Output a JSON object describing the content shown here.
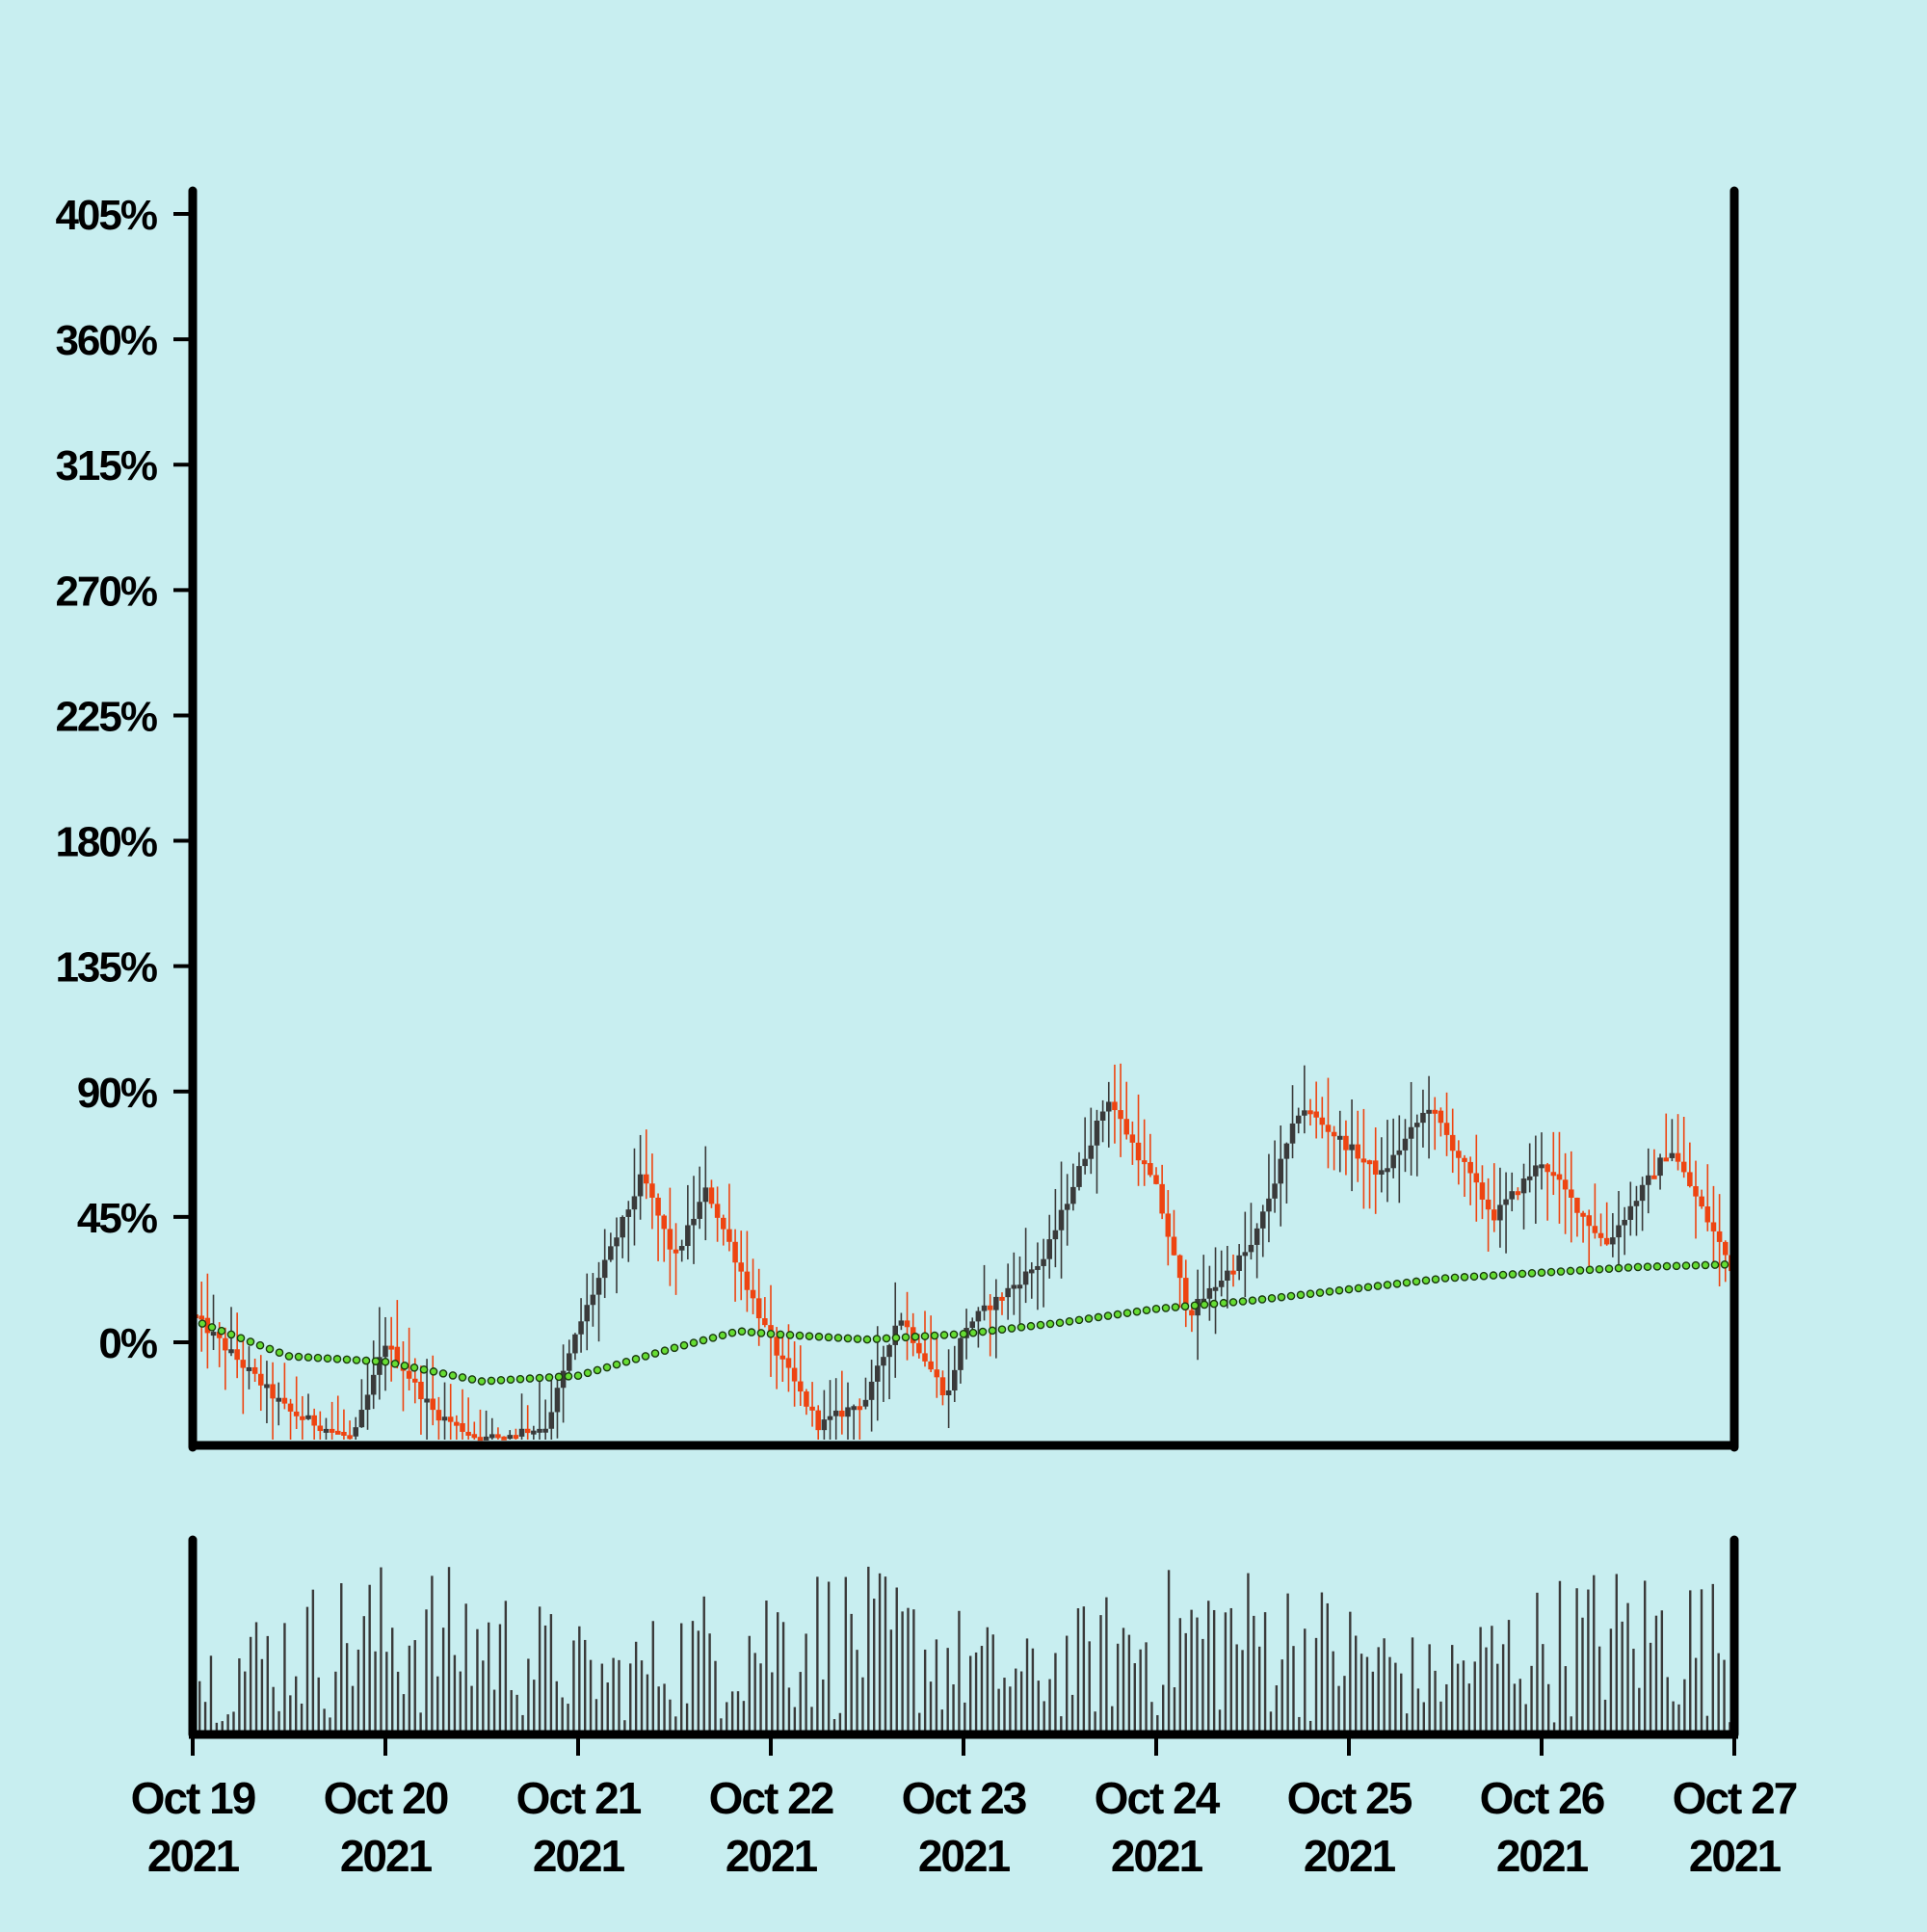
{
  "colors": {
    "background": "#c8eef0",
    "up_candle": "#3a3a3a",
    "down_candle": "#ee4411",
    "moving_average": "#66dd33",
    "volume": "#3a3a3a",
    "axis": "#000000"
  },
  "chart_data": [
    {
      "type": "candlestick",
      "title": "",
      "xlabel": "",
      "ylabel": "",
      "grid": false,
      "x_range": [
        "2021-10-19",
        "2021-10-27"
      ],
      "ylim": [
        -35,
        405
      ],
      "y_ticks": [
        {
          "value": 0,
          "label": "0%"
        },
        {
          "value": 45,
          "label": "45%"
        },
        {
          "value": 90,
          "label": "90%"
        },
        {
          "value": 135,
          "label": "135%"
        },
        {
          "value": 180,
          "label": "180%"
        },
        {
          "value": 225,
          "label": "225%"
        },
        {
          "value": 270,
          "label": "270%"
        },
        {
          "value": 315,
          "label": "315%"
        },
        {
          "value": 360,
          "label": "360%"
        },
        {
          "value": 405,
          "label": "405%"
        }
      ],
      "x_ticks": [
        {
          "date": "2021-10-19",
          "line1": "Oct 19",
          "line2": "2021"
        },
        {
          "date": "2021-10-20",
          "line1": "Oct 20",
          "line2": "2021"
        },
        {
          "date": "2021-10-21",
          "line1": "Oct 21",
          "line2": "2021"
        },
        {
          "date": "2021-10-22",
          "line1": "Oct 22",
          "line2": "2021"
        },
        {
          "date": "2021-10-23",
          "line1": "Oct 23",
          "line2": "2021"
        },
        {
          "date": "2021-10-24",
          "line1": "Oct 24",
          "line2": "2021"
        },
        {
          "date": "2021-10-25",
          "line1": "Oct 25",
          "line2": "2021"
        },
        {
          "date": "2021-10-26",
          "line1": "Oct 26",
          "line2": "2021"
        },
        {
          "date": "2021-10-27",
          "line1": "Oct 27",
          "line2": "2021"
        }
      ],
      "close_path": [
        {
          "date": "2021-10-19",
          "close": 10
        },
        {
          "date": "2021-10-19 12:00",
          "close": -25
        },
        {
          "date": "2021-10-19 20:00",
          "close": -35
        },
        {
          "date": "2021-10-20",
          "close": 0
        },
        {
          "date": "2021-10-20 06:00",
          "close": -25
        },
        {
          "date": "2021-10-20 12:00",
          "close": -35
        },
        {
          "date": "2021-10-20 20:00",
          "close": -30
        },
        {
          "date": "2021-10-21",
          "close": 5
        },
        {
          "date": "2021-10-21 08:00",
          "close": 60
        },
        {
          "date": "2021-10-21 12:00",
          "close": 30
        },
        {
          "date": "2021-10-21 16:00",
          "close": 55
        },
        {
          "date": "2021-10-22",
          "close": 0
        },
        {
          "date": "2021-10-22 06:00",
          "close": -30
        },
        {
          "date": "2021-10-22 12:00",
          "close": -20
        },
        {
          "date": "2021-10-22 16:00",
          "close": 10
        },
        {
          "date": "2021-10-22 22:00",
          "close": -20
        },
        {
          "date": "2021-10-23",
          "close": 5
        },
        {
          "date": "2021-10-23 10:00",
          "close": 30
        },
        {
          "date": "2021-10-23 18:00",
          "close": 88
        },
        {
          "date": "2021-10-24",
          "close": 55
        },
        {
          "date": "2021-10-24 04:00",
          "close": 10
        },
        {
          "date": "2021-10-24 12:00",
          "close": 35
        },
        {
          "date": "2021-10-24 18:00",
          "close": 85
        },
        {
          "date": "2021-10-25 04:00",
          "close": 60
        },
        {
          "date": "2021-10-25 10:00",
          "close": 85
        },
        {
          "date": "2021-10-25 18:00",
          "close": 45
        },
        {
          "date": "2021-10-26",
          "close": 65
        },
        {
          "date": "2021-10-26 08:00",
          "close": 35
        },
        {
          "date": "2021-10-26 16:00",
          "close": 70
        },
        {
          "date": "2021-10-27",
          "close": 25
        }
      ],
      "moving_average": [
        {
          "date": "2021-10-19",
          "value": 8
        },
        {
          "date": "2021-10-19 12:00",
          "value": -5
        },
        {
          "date": "2021-10-20",
          "value": -7
        },
        {
          "date": "2021-10-20 12:00",
          "value": -14
        },
        {
          "date": "2021-10-21",
          "value": -12
        },
        {
          "date": "2021-10-21 12:00",
          "value": -2
        },
        {
          "date": "2021-10-21 20:00",
          "value": 4
        },
        {
          "date": "2021-10-22",
          "value": 3
        },
        {
          "date": "2021-10-22 12:00",
          "value": 1
        },
        {
          "date": "2021-10-23",
          "value": 3
        },
        {
          "date": "2021-10-23 12:00",
          "value": 7
        },
        {
          "date": "2021-10-24",
          "value": 12
        },
        {
          "date": "2021-10-24 12:00",
          "value": 15
        },
        {
          "date": "2021-10-25",
          "value": 19
        },
        {
          "date": "2021-10-25 12:00",
          "value": 23
        },
        {
          "date": "2021-10-26",
          "value": 25
        },
        {
          "date": "2021-10-26 12:00",
          "value": 27
        },
        {
          "date": "2021-10-27",
          "value": 28
        }
      ]
    },
    {
      "type": "bar",
      "title": "",
      "xlabel": "",
      "ylabel": "",
      "series": [
        {
          "values_description_omitted": true
        }
      ],
      "bars_per_day": 34,
      "shared_x_axis": true
    }
  ]
}
